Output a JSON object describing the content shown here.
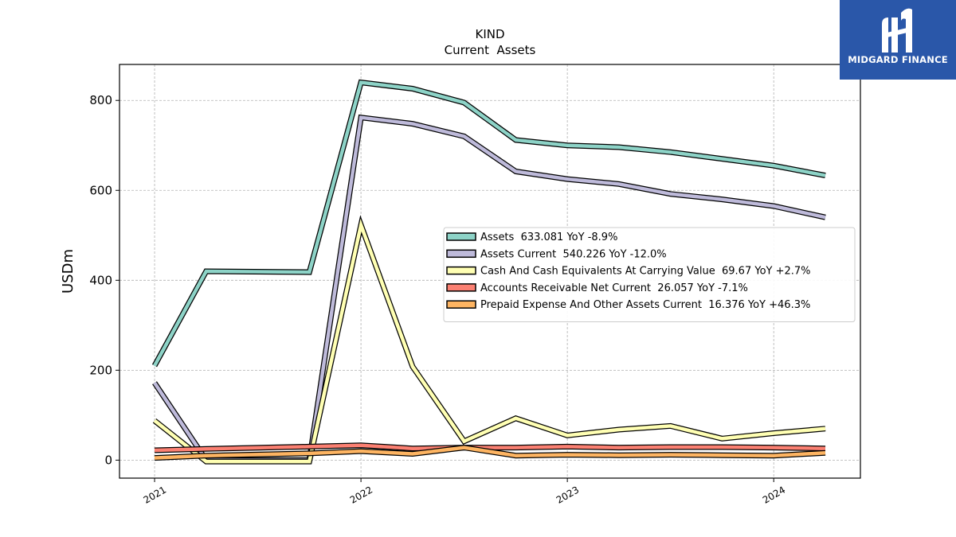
{
  "logo": {
    "text": "MIDGARD FINANCE"
  },
  "chart_data": {
    "type": "line",
    "title": "KIND",
    "subtitle": "Current  Assets",
    "ylabel": "USDm",
    "xlabel": "",
    "ylim": [
      -40,
      880
    ],
    "xlim": [
      2020.83,
      2024.42
    ],
    "y_ticks": [
      0,
      200,
      400,
      600,
      800
    ],
    "x_ticks": [
      2021,
      2022,
      2023,
      2024
    ],
    "x_tick_labels": [
      "2021",
      "2022",
      "2023",
      "2024"
    ],
    "grid": true,
    "legend_position": "center-right",
    "series": [
      {
        "name": "Assets",
        "legend": "Assets  633.081 YoY -8.9%",
        "color": "#8dd3c7",
        "points": [
          [
            2021.0,
            210
          ],
          [
            2021.25,
            420
          ],
          [
            2021.75,
            418
          ],
          [
            2022.0,
            840
          ],
          [
            2022.25,
            826
          ],
          [
            2022.5,
            795
          ],
          [
            2022.75,
            712
          ],
          [
            2023.0,
            700
          ],
          [
            2023.25,
            696
          ],
          [
            2023.5,
            685
          ],
          [
            2023.75,
            670
          ],
          [
            2024.0,
            655
          ],
          [
            2024.25,
            633
          ]
        ]
      },
      {
        "name": "Assets Current",
        "legend": "Assets Current  540.226 YoY -12.0%",
        "color": "#bebada",
        "points": [
          [
            2021.0,
            172
          ],
          [
            2021.25,
            0
          ],
          [
            2021.75,
            0
          ],
          [
            2022.0,
            762
          ],
          [
            2022.25,
            748
          ],
          [
            2022.5,
            720
          ],
          [
            2022.75,
            642
          ],
          [
            2023.0,
            625
          ],
          [
            2023.25,
            614
          ],
          [
            2023.5,
            592
          ],
          [
            2023.75,
            580
          ],
          [
            2024.0,
            565
          ],
          [
            2024.25,
            540
          ]
        ]
      },
      {
        "name": "Cash And Cash Equivalents At Carrying Value",
        "legend": "Cash And Cash Equivalents At Carrying Value  69.67 YoY +2.7%",
        "color": "#ffffb3",
        "points": [
          [
            2021.0,
            88
          ],
          [
            2021.25,
            -3
          ],
          [
            2021.75,
            -3
          ],
          [
            2022.0,
            523
          ],
          [
            2022.25,
            208
          ],
          [
            2022.5,
            42
          ],
          [
            2022.75,
            93
          ],
          [
            2023.0,
            55
          ],
          [
            2023.25,
            68
          ],
          [
            2023.5,
            76
          ],
          [
            2023.75,
            48
          ],
          [
            2024.0,
            60
          ],
          [
            2024.25,
            70
          ]
        ]
      },
      {
        "name": "Accounts Receivable Net Current",
        "legend": "Accounts Receivable Net Current  26.057 YoY -7.1%",
        "color": "#fb8072",
        "points": [
          [
            2021.0,
            22
          ],
          [
            2021.25,
            25
          ],
          [
            2021.75,
            30
          ],
          [
            2022.0,
            33
          ],
          [
            2022.25,
            26
          ],
          [
            2022.5,
            28
          ],
          [
            2022.75,
            28
          ],
          [
            2023.0,
            30
          ],
          [
            2023.25,
            28
          ],
          [
            2023.5,
            29
          ],
          [
            2023.75,
            29
          ],
          [
            2024.0,
            28
          ],
          [
            2024.25,
            26
          ]
        ]
      },
      {
        "name": "Prepaid Expense And Other Assets Current",
        "legend": "Prepaid Expense And Other Assets Current  16.376 YoY +46.3%",
        "color": "#fdb462",
        "points": [
          [
            2021.0,
            5
          ],
          [
            2021.25,
            10
          ],
          [
            2021.75,
            15
          ],
          [
            2022.0,
            20
          ],
          [
            2022.25,
            14
          ],
          [
            2022.5,
            28
          ],
          [
            2022.75,
            10
          ],
          [
            2023.0,
            12
          ],
          [
            2023.25,
            11
          ],
          [
            2023.5,
            12
          ],
          [
            2023.75,
            11
          ],
          [
            2024.0,
            10
          ],
          [
            2024.25,
            16
          ]
        ]
      }
    ]
  }
}
